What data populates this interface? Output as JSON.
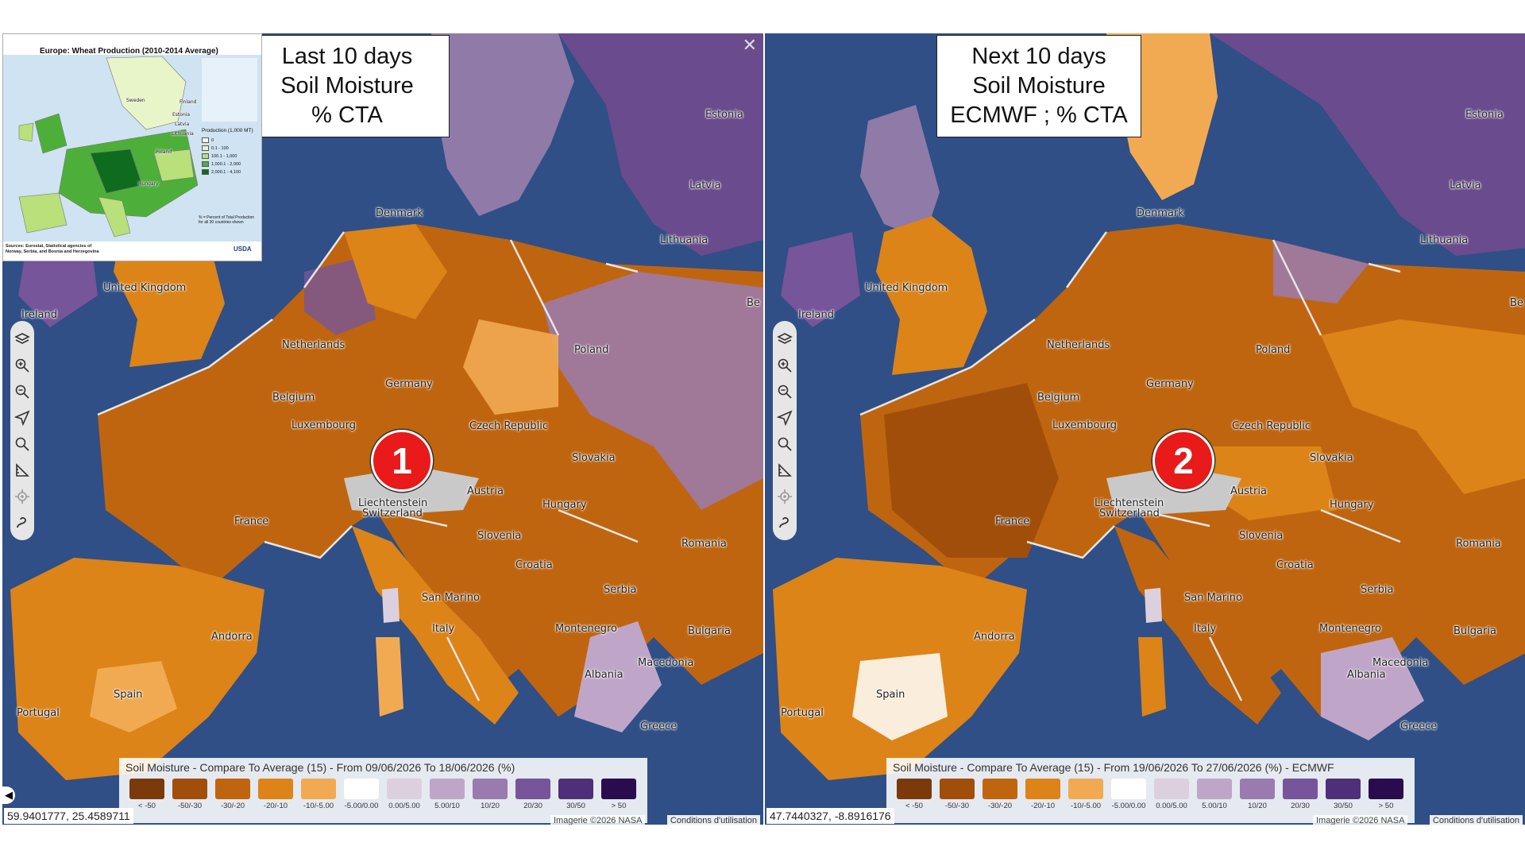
{
  "inset_map": {
    "title": "Europe: Wheat Production (2010-2014 Average)",
    "legend_title": "Production (1,000 MT)",
    "legend_items": [
      {
        "label": "0",
        "color": "#ffffff"
      },
      {
        "label": "0.1 - 100",
        "color": "#e8f5c8"
      },
      {
        "label": "100.1 - 1,000",
        "color": "#b9e07a"
      },
      {
        "label": "1,000.1 - 2,000",
        "color": "#4daf3a"
      },
      {
        "label": "2,000.1 - 4,100",
        "color": "#0f6b1e"
      }
    ],
    "note": "% = Percent of Total Production for all 30 countries shown",
    "source": "Sources: Eurostat, Statistical agencies of Norway, Serbia, and Bosnia and Herzegovina",
    "logo": "USDA",
    "country_labels": [
      "Sweden",
      "Finland",
      "Poland",
      "Hungary",
      "Estonia",
      "Latvia",
      "Lithuania"
    ]
  },
  "panels": [
    {
      "id": "left",
      "title_lines": [
        "Last 10 days",
        "Soil Moisture",
        "% CTA"
      ],
      "marker": "1",
      "legend_title": "Soil Moisture - Compare To Average (15) - From 09/06/2026 To 18/06/2026 (%)",
      "coords": "59.9401777, 25.4589711",
      "attribution": "Imagerie ©2026 NASA",
      "terms": "Conditions d'utilisation"
    },
    {
      "id": "right",
      "title_lines": [
        "Next 10 days",
        "Soil Moisture",
        "ECMWF ; % CTA"
      ],
      "marker": "2",
      "legend_title": "Soil Moisture - Compare To Average (15) - From 19/06/2026 To 27/06/2026 (%) - ECMWF",
      "coords": "47.7440327, -8.8916176",
      "attribution": "Imagerie ©2026 NASA",
      "terms": "Conditions d'utilisation"
    }
  ],
  "legend_classes": [
    {
      "label": "< -50",
      "color": "#7a3a0a"
    },
    {
      "label": "-50/-30",
      "color": "#a24e0b"
    },
    {
      "label": "-30/-20",
      "color": "#c0650f"
    },
    {
      "label": "-20/-10",
      "color": "#dc8418"
    },
    {
      "label": "-10/-5.00",
      "color": "#f2aa52"
    },
    {
      "label": "-5.00/0.00",
      "color": "#ffffff"
    },
    {
      "label": "0.00/5.00",
      "color": "#ddd0de"
    },
    {
      "label": "5.00/10",
      "color": "#bfa6c8"
    },
    {
      "label": "10/20",
      "color": "#9a7bb0"
    },
    {
      "label": "20/30",
      "color": "#76559a"
    },
    {
      "label": "30/50",
      "color": "#4f2f78"
    },
    {
      "label": "> 50",
      "color": "#2a0c4e"
    }
  ],
  "country_labels": [
    "Estonia",
    "Latvia",
    "Denmark",
    "Lithuania",
    "United Kingdom",
    "Ireland",
    "Netherlands",
    "Poland",
    "Germany",
    "Belgium",
    "Luxembourg",
    "Czech Republic",
    "Slovakia",
    "Austria",
    "Liechtenstein",
    "Switzerland",
    "France",
    "Hungary",
    "Slovenia",
    "Romania",
    "Croatia",
    "San Marino",
    "Serbia",
    "Andorra",
    "Italy",
    "Montenegro",
    "Bulgaria",
    "Macedonia",
    "Spain",
    "Albania",
    "Portugal",
    "Greece",
    "Be"
  ]
}
